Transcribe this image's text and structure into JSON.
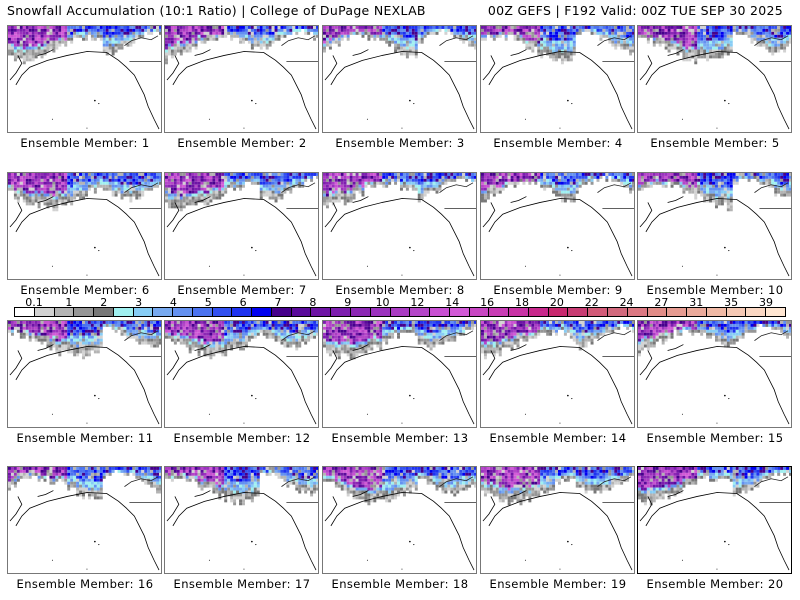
{
  "header": {
    "title": "Snowfall Accumulation (10:1 Ratio) | College of DuPage NEXLAB",
    "run_info": "00Z GEFS | F192 Valid: 00Z TUE SEP 30 2025"
  },
  "panels": [
    {
      "label": "Ensemble Member: 1",
      "member": 1
    },
    {
      "label": "Ensemble Member: 2",
      "member": 2
    },
    {
      "label": "Ensemble Member: 3",
      "member": 3
    },
    {
      "label": "Ensemble Member: 4",
      "member": 4
    },
    {
      "label": "Ensemble Member: 5",
      "member": 5
    },
    {
      "label": "Ensemble Member: 6",
      "member": 6
    },
    {
      "label": "Ensemble Member: 7",
      "member": 7
    },
    {
      "label": "Ensemble Member: 8",
      "member": 8
    },
    {
      "label": "Ensemble Member: 9",
      "member": 9
    },
    {
      "label": "Ensemble Member: 10",
      "member": 10
    },
    {
      "label": "Ensemble Member: 11",
      "member": 11
    },
    {
      "label": "Ensemble Member: 12",
      "member": 12
    },
    {
      "label": "Ensemble Member: 13",
      "member": 13
    },
    {
      "label": "Ensemble Member: 14",
      "member": 14
    },
    {
      "label": "Ensemble Member: 15",
      "member": 15
    },
    {
      "label": "Ensemble Member: 16",
      "member": 16
    },
    {
      "label": "Ensemble Member: 17",
      "member": 17
    },
    {
      "label": "Ensemble Member: 18",
      "member": 18
    },
    {
      "label": "Ensemble Member: 19",
      "member": 19
    },
    {
      "label": "Ensemble Member: 20",
      "member": 20
    }
  ],
  "selected_member": 20,
  "colorbar": {
    "tick_labels": [
      "0.1",
      "1",
      "2",
      "3",
      "4",
      "5",
      "6",
      "7",
      "8",
      "9",
      "10",
      "12",
      "14",
      "16",
      "18",
      "20",
      "22",
      "24",
      "27",
      "31",
      "35",
      "39"
    ],
    "colors": [
      "#ffffff",
      "#d2d2d2",
      "#b4b4b4",
      "#969696",
      "#787878",
      "#a0f0f0",
      "#87cdf5",
      "#78aaf0",
      "#6491f0",
      "#4b73f0",
      "#3250f0",
      "#1e32f0",
      "#0000f0",
      "#46008c",
      "#5a0a9b",
      "#6e14a5",
      "#7d1eaf",
      "#8c28b4",
      "#9b32be",
      "#aa3cc3",
      "#b446c8",
      "#c850d2",
      "#d25ad7",
      "#c846c3",
      "#c83cb4",
      "#c832a5",
      "#c8288c",
      "#c8286e",
      "#c83c73",
      "#d25a78",
      "#d2697d",
      "#dc7882",
      "#e18c87",
      "#e69b91",
      "#ebaa9b",
      "#f0b9a5",
      "#f5c8b4",
      "#fad7c3",
      "#ffe6d2"
    ]
  }
}
